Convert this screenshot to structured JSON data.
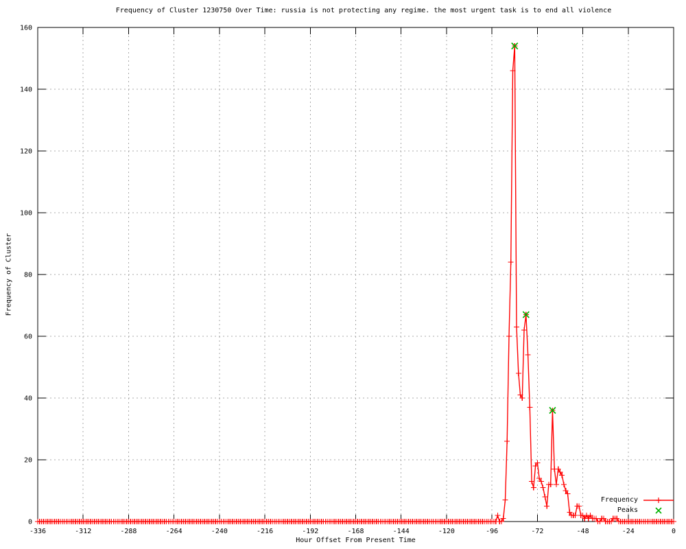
{
  "title": "Frequency of Cluster 1230750 Over Time: russia is not protecting any regime. the most urgent task is to end all violence",
  "chart_data": {
    "type": "line",
    "title": "Frequency of Cluster 1230750 Over Time: russia is not protecting any regime. the most urgent task is to end all violence",
    "xlabel": "Hour Offset From Present Time",
    "ylabel": "Frequency of Cluster",
    "xlim": [
      -336,
      0
    ],
    "ylim": [
      0,
      160
    ],
    "x_ticks": [
      -336,
      -312,
      -288,
      -264,
      -240,
      -216,
      -192,
      -168,
      -144,
      -120,
      -96,
      -72,
      -48,
      -24,
      0
    ],
    "y_ticks": [
      0,
      20,
      40,
      60,
      80,
      100,
      120,
      140,
      160
    ],
    "grid": true,
    "legend_position": "bottom-right-inside",
    "series": [
      {
        "name": "Frequency",
        "color": "#ff0000",
        "marker": "plus",
        "x_step": 1,
        "fill_value": 0,
        "values": {
          "-93": 2,
          "-90": 1,
          "-89": 7,
          "-88": 26,
          "-87": 60,
          "-86": 84,
          "-85": 146,
          "-84": 154,
          "-83": 63,
          "-82": 48,
          "-81": 41,
          "-80": 40,
          "-79": 62,
          "-78": 67,
          "-77": 54,
          "-76": 37,
          "-75": 13,
          "-74": 11,
          "-73": 18,
          "-72": 19,
          "-71": 14,
          "-70": 13,
          "-69": 11,
          "-68": 8,
          "-67": 5,
          "-66": 12,
          "-65": 12,
          "-64": 36,
          "-63": 17,
          "-62": 12,
          "-61": 17,
          "-60": 16,
          "-59": 15,
          "-58": 12,
          "-57": 10,
          "-56": 9,
          "-55": 3,
          "-54": 2,
          "-53": 2,
          "-52": 2,
          "-51": 5,
          "-50": 5,
          "-49": 2,
          "-48": 2,
          "-47": 1,
          "-46": 2,
          "-45": 1,
          "-44": 2,
          "-43": 1,
          "-42": 1,
          "-41": 1,
          "-38": 1,
          "-37": 1,
          "-32": 1,
          "-31": 1,
          "-30": 1
        }
      },
      {
        "name": "Peaks",
        "color": "#00b000",
        "marker": "cross",
        "points": [
          [
            -84,
            154
          ],
          [
            -78,
            67
          ],
          [
            -64,
            36
          ]
        ]
      }
    ]
  }
}
